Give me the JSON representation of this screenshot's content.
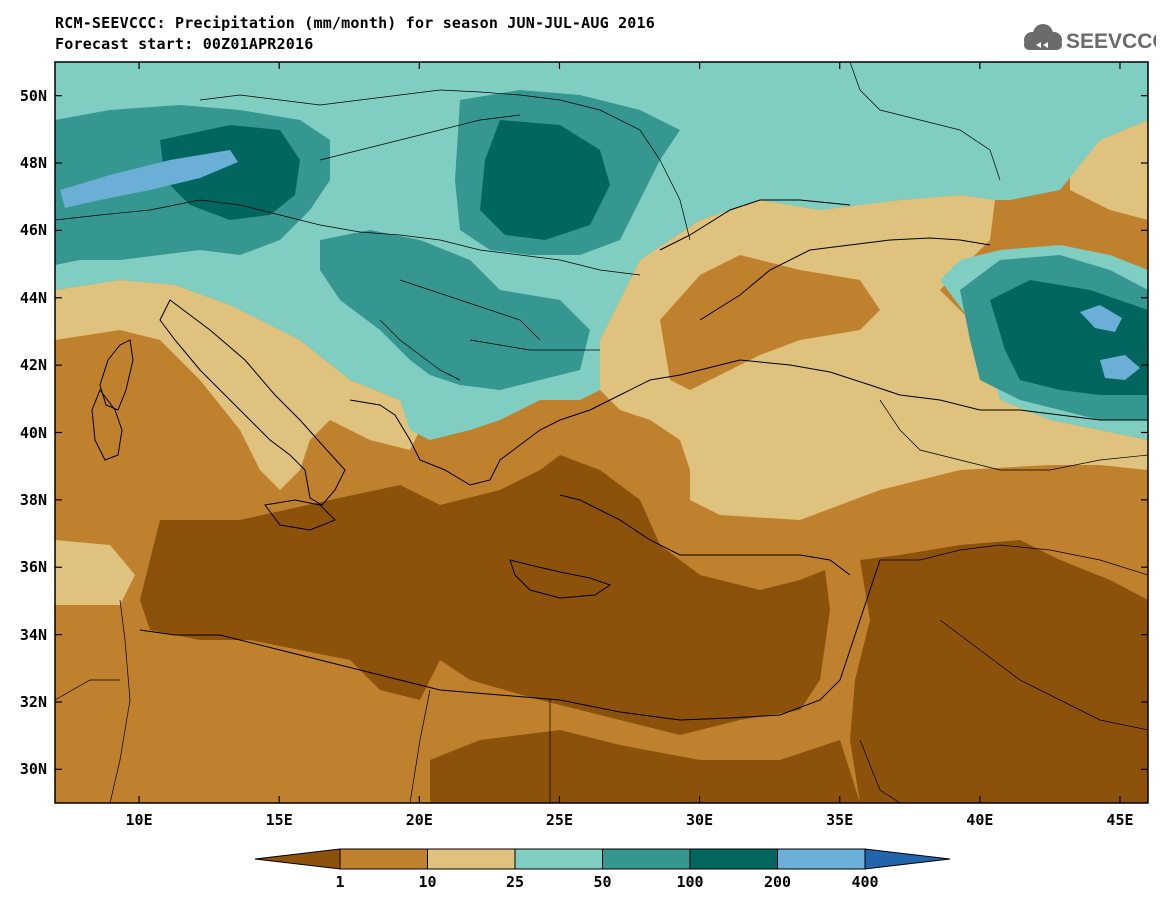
{
  "title_line1": "RCM-SEEVCCC: Precipitation (mm/month) for season JUN-JUL-AUG 2016",
  "title_line2": "Forecast start: 00Z01APR2016",
  "logo_text": "SEEVCCC",
  "logo_color": "#6b6b6b",
  "map": {
    "region": "Mediterranean / South-East Europe",
    "variable": "Precipitation",
    "units": "mm/month",
    "lon_range": [
      7,
      46
    ],
    "lat_range": [
      29,
      51
    ],
    "lat_labels": [
      "50N",
      "48N",
      "46N",
      "44N",
      "42N",
      "40N",
      "38N",
      "36N",
      "34N",
      "32N",
      "30N"
    ],
    "lon_labels": [
      "10E",
      "15E",
      "20E",
      "25E",
      "30E",
      "35E",
      "40E",
      "45E"
    ],
    "coastline_color": "#000000",
    "border_color": "#000000"
  },
  "legend": {
    "levels": [
      "1",
      "10",
      "25",
      "50",
      "100",
      "200",
      "400"
    ],
    "colors": [
      "#8c510a",
      "#bf812d",
      "#dfc27d",
      "#80cdc1",
      "#35978f",
      "#01665e",
      "#6baed6",
      "#2166ac"
    ],
    "extend": "both",
    "orientation": "horizontal"
  }
}
